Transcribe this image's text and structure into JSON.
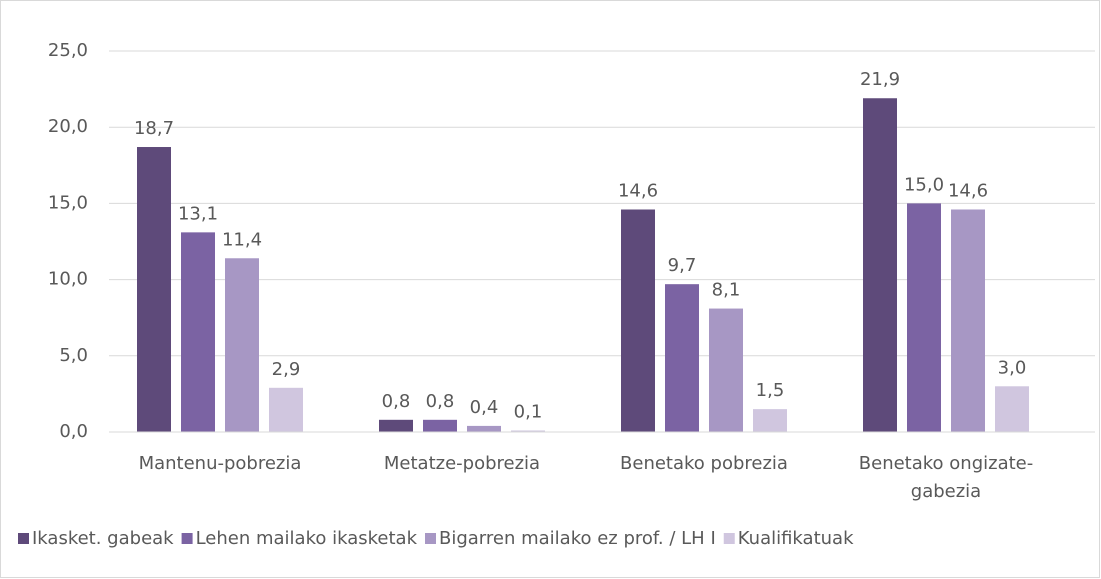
{
  "chart_data": {
    "type": "bar",
    "categories": [
      "Mantenu-pobrezia",
      "Metatze-pobrezia",
      "Benetako pobrezia",
      "Benetako ongizate-gabezia"
    ],
    "series": [
      {
        "name": "Ikasket. gabeak",
        "color": "#5e4a7a",
        "values": [
          18.7,
          0.8,
          14.6,
          21.9
        ],
        "value_labels": [
          "18,7",
          "0,8",
          "14,6",
          "21,9"
        ]
      },
      {
        "name": "Lehen mailako ikasketak",
        "color": "#7b63a3",
        "values": [
          13.1,
          0.8,
          9.7,
          15.0
        ],
        "value_labels": [
          "13,1",
          "0,8",
          "9,7",
          "15,0"
        ]
      },
      {
        "name": "Bigarren mailako ez prof. / LH I",
        "color": "#a797c4",
        "values": [
          11.4,
          0.4,
          8.1,
          14.6
        ],
        "value_labels": [
          "11,4",
          "0,4",
          "8,1",
          "14,6"
        ]
      },
      {
        "name": "Kualifikatuak",
        "color": "#d0c6df",
        "values": [
          2.9,
          0.1,
          1.5,
          3.0
        ],
        "value_labels": [
          "2,9",
          "0,1",
          "1,5",
          "3,0"
        ]
      }
    ],
    "ylim": [
      0,
      25
    ],
    "yticks": [
      {
        "value": 0,
        "label": "0,0"
      },
      {
        "value": 5,
        "label": "5,0"
      },
      {
        "value": 10,
        "label": "10,0"
      },
      {
        "value": 15,
        "label": "15,0"
      },
      {
        "value": 20,
        "label": "20,0"
      },
      {
        "value": 25,
        "label": "25,0"
      }
    ],
    "grid": true,
    "legend": "bottom"
  }
}
